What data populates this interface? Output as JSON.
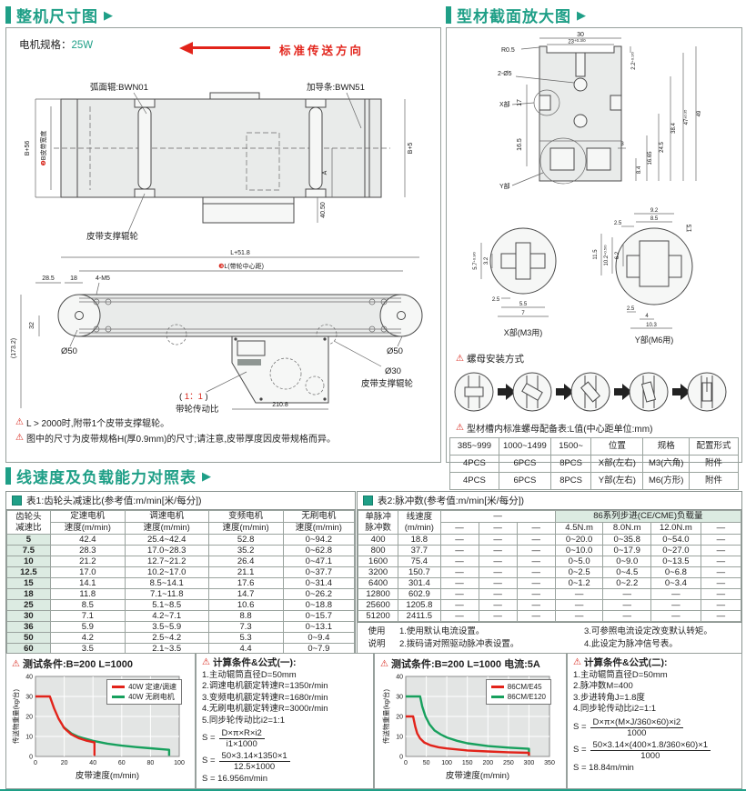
{
  "machine_panel": {
    "title": "整机尺寸图",
    "arrow": "▶",
    "motor_spec_label": "电机规格：",
    "motor_spec_value": "25W",
    "direction_label": "标准传送方向",
    "top_view": {
      "roller_label": "弧面辊:BWN01",
      "guide_label": "加导条:BWN51",
      "dim_left_outer": "B+56",
      "dim_belt_badge": "❷",
      "dim_belt_width": "B皮带宽度",
      "dim_right": "B+5",
      "dim_a": "A",
      "dim_4050": "40.50",
      "support_roller_label": "皮带支撑辊轮"
    },
    "side_view": {
      "dim_total": "L+51.8",
      "dim_center_badge": "❸",
      "dim_center": "L(带轮中心距)",
      "dim_285": "28.5",
      "dim_18": "18",
      "dim_4m5": "4-M5",
      "dim_1732": "(173.2)",
      "dim_32": "32",
      "dim_d50_left": "Ø50",
      "dim_d50_right": "Ø50",
      "dim_d30": "Ø30",
      "support_roller_label": "皮带支撑辊轮",
      "dim_2108": "210.8",
      "ratio_open": "( ",
      "ratio_value": "1：1",
      "ratio_close": " )",
      "ratio_caption": "带轮传动比"
    },
    "notes": [
      "L > 2000时,附带1个皮带支撑辊轮。",
      "图中的尺寸为皮带规格H(厚0.9mm)的尺寸;请注意,皮带厚度因皮带规格而异。"
    ]
  },
  "profile_panel": {
    "title": "型材截面放大图",
    "arrow": "▶",
    "section": {
      "dim_30": "30",
      "dim_23": "23",
      "dim_23_tol": "+0.3/0",
      "r05": "R0.5",
      "holes": "2-Ø5",
      "x_label": "X部",
      "y_label": "Y部",
      "dim_17": "17",
      "dim_165": "16.5",
      "dim_22": "2.2",
      "dim_22_tol": "+0.2/0",
      "dim_3": "3",
      "dim_84": "8.4",
      "dim_1665": "16.65",
      "dim_245": "24.5",
      "dim_384": "38.4",
      "dim_47": "47",
      "dim_47_tol": "±0.35",
      "dim_49": "49"
    },
    "x_detail": {
      "dim_57": "5.7",
      "dim_57_tol": "+0.3/0",
      "dim_32": "3.2",
      "dim_25": "2.5",
      "dim_55": "5.5",
      "dim_7": "7",
      "caption": "X部(M3用)"
    },
    "y_detail": {
      "dim_92": "9.2",
      "dim_85": "8.5",
      "dim_15": "1.5",
      "dim_25a": "2.5",
      "dim_115": "11.5",
      "dim_102": "10.2",
      "dim_102_tol": "+0.5/0",
      "dim_62": "6.2",
      "dim_25b": "2.5",
      "dim_4": "4",
      "dim_103": "10.3",
      "caption": "Y部(M6用)"
    },
    "nut_install_label": "螺母安装方式",
    "nut_table_title": "型材槽内标准螺母配备表:L值(中心距单位:mm)",
    "nut_table": {
      "headers": [
        "385~999",
        "1000~1499",
        "1500~",
        "位置",
        "规格",
        "配置形式"
      ],
      "rows": [
        [
          "4PCS",
          "6PCS",
          "8PCS",
          "X部(左右)",
          "M3(六角)",
          "附件"
        ],
        [
          "4PCS",
          "6PCS",
          "8PCS",
          "Y部(左右)",
          "M6(方形)",
          "附件"
        ]
      ]
    }
  },
  "speed_section": {
    "title": "线速度及负载能力对照表",
    "arrow": "▶",
    "table1": {
      "caption": "表1:齿轮头减速比(参考值:m/min[米/每分])",
      "row_header_line1": "齿轮头",
      "row_header_line2": "减速比",
      "col_headers": [
        "定速电机",
        "调速电机",
        "变频电机",
        "无刷电机"
      ],
      "col_sub": "速度(m/min)",
      "rows": [
        [
          "5",
          "42.4",
          "25.4~42.4",
          "52.8",
          "0~94.2"
        ],
        [
          "7.5",
          "28.3",
          "17.0~28.3",
          "35.2",
          "0~62.8"
        ],
        [
          "10",
          "21.2",
          "12.7~21.2",
          "26.4",
          "0~47.1"
        ],
        [
          "12.5",
          "17.0",
          "10.2~17.0",
          "21.1",
          "0~37.7"
        ],
        [
          "15",
          "14.1",
          "8.5~14.1",
          "17.6",
          "0~31.4"
        ],
        [
          "18",
          "11.8",
          "7.1~11.8",
          "14.7",
          "0~26.2"
        ],
        [
          "25",
          "8.5",
          "5.1~8.5",
          "10.6",
          "0~18.8"
        ],
        [
          "30",
          "7.1",
          "4.2~7.1",
          "8.8",
          "0~15.7"
        ],
        [
          "36",
          "5.9",
          "3.5~5.9",
          "7.3",
          "0~13.1"
        ],
        [
          "50",
          "4.2",
          "2.5~4.2",
          "5.3",
          "0~9.4"
        ],
        [
          "60",
          "3.5",
          "2.1~3.5",
          "4.4",
          "0~7.9"
        ]
      ]
    },
    "table2": {
      "caption": "表2:脉冲数(参考值:m/min[米/每分])",
      "row_header_line1": "单脉冲",
      "row_header_line2": "脉冲数",
      "speed_header_line1": "线速度",
      "speed_header_line2": "(m/min)",
      "dash_group": "—",
      "group_header": "86系列步进(CE/CME)负载量",
      "sub_headers": [
        "—",
        "—",
        "—",
        "4.5N.m",
        "8.0N.m",
        "12.0N.m",
        "—"
      ],
      "rows": [
        [
          "400",
          "18.8",
          "—",
          "—",
          "—",
          "0~20.0",
          "0~35.8",
          "0~54.0",
          "—"
        ],
        [
          "800",
          "37.7",
          "—",
          "—",
          "—",
          "0~10.0",
          "0~17.9",
          "0~27.0",
          "—"
        ],
        [
          "1600",
          "75.4",
          "—",
          "—",
          "—",
          "0~5.0",
          "0~9.0",
          "0~13.5",
          "—"
        ],
        [
          "3200",
          "150.7",
          "—",
          "—",
          "—",
          "0~2.5",
          "0~4.5",
          "0~6.8",
          "—"
        ],
        [
          "6400",
          "301.4",
          "—",
          "—",
          "—",
          "0~1.2",
          "0~2.2",
          "0~3.4",
          "—"
        ],
        [
          "12800",
          "602.9",
          "—",
          "—",
          "—",
          "—",
          "—",
          "—",
          "—"
        ],
        [
          "25600",
          "1205.8",
          "—",
          "—",
          "—",
          "—",
          "—",
          "—",
          "—"
        ],
        [
          "51200",
          "2411.5",
          "—",
          "—",
          "—",
          "—",
          "—",
          "—",
          "—"
        ]
      ],
      "usage_label_1": "使用",
      "usage_label_2": "说明",
      "usage_notes_left": [
        "1.使用默认电流设置。",
        "2.拨码请对照驱动脉冲表设置。"
      ],
      "usage_notes_right": [
        "3.可参照电流设定改变默认转矩。",
        "4.此设定为脉冲信号表。"
      ]
    }
  },
  "calc1": {
    "title": "计算条件&公式(一):",
    "lines": [
      "1.主动辊筒直径D=50mm",
      "2.调速电机额定转速R=1350r/min",
      "3.变频电机额定转速R=1680r/min",
      "4.无刷电机额定转速R=3000r/min",
      "5.同步轮传动比i2=1:1"
    ],
    "s_label": "S =",
    "f1_num": "D×π×R×i2",
    "f1_den": "i1×1000",
    "f2_num": "50×3.14×1350×1",
    "f2_den": "12.5×1000",
    "result": "S = 16.956m/min"
  },
  "calc2": {
    "title": "计算条件&公式(二):",
    "lines": [
      "1.主动辊筒直径D=50mm",
      "2.脉冲数M=400",
      "3.步进转角J=1.8度",
      "4.同步轮传动比i2=1:1"
    ],
    "s_label": "S =",
    "f1_num": "D×π×(M×J/360×60)×i2",
    "f1_den": "1000",
    "f2_num": "50×3.14×(400×1.8/360×60)×1",
    "f2_den": "1000",
    "result": "S = 18.84m/min"
  },
  "chart_data": [
    {
      "type": "line",
      "title": "测试条件:B=200  L=1000",
      "xlabel": "皮带速度(m/min)",
      "ylabel": "传送物重量(kg/台)",
      "xlim": [
        0,
        100
      ],
      "ylim": [
        0,
        40
      ],
      "grid": true,
      "legend_position": "top-right",
      "x_ticks": [
        "0",
        "20",
        "40",
        "60",
        "80",
        "100"
      ],
      "y_ticks": [
        "0",
        "10",
        "20",
        "30",
        "40"
      ],
      "series": [
        {
          "name": "40W 定速/调速",
          "color": "#e2231a",
          "points": [
            [
              0,
              30
            ],
            [
              10,
              30
            ],
            [
              13,
              24
            ],
            [
              16,
              19
            ],
            [
              20,
              14.2
            ],
            [
              25,
              11
            ],
            [
              30,
              9.2
            ],
            [
              35,
              8
            ],
            [
              40,
              7.2
            ],
            [
              41,
              7
            ],
            [
              41,
              0.3
            ]
          ]
        },
        {
          "name": "40W 无刷电机",
          "color": "#17a05d",
          "points": [
            [
              19,
              15
            ],
            [
              25,
              11.5
            ],
            [
              30,
              9.8
            ],
            [
              40,
              7.8
            ],
            [
              50,
              6.4
            ],
            [
              60,
              5.4
            ],
            [
              70,
              4.7
            ],
            [
              80,
              4.1
            ],
            [
              88,
              3.6
            ],
            [
              93,
              3.3
            ],
            [
              93,
              0.3
            ]
          ]
        }
      ]
    },
    {
      "type": "line",
      "title": "测试条件:B=200  L=1000  电流:5A",
      "xlabel": "皮带速度(m/min)",
      "ylabel": "传送物重量(kg/台)",
      "xlim": [
        0,
        350
      ],
      "ylim": [
        0,
        40
      ],
      "grid": true,
      "legend_position": "top-right",
      "x_ticks": [
        "0",
        "50",
        "100",
        "150",
        "200",
        "250",
        "300",
        "350"
      ],
      "y_ticks": [
        "0",
        "10",
        "20",
        "30",
        "40"
      ],
      "series": [
        {
          "name": "86CM/E45",
          "color": "#e2231a",
          "points": [
            [
              0,
              20
            ],
            [
              18,
              20
            ],
            [
              23,
              15
            ],
            [
              28,
              11.5
            ],
            [
              35,
              9
            ],
            [
              45,
              7
            ],
            [
              60,
              5.6
            ],
            [
              80,
              4.6
            ],
            [
              100,
              4
            ],
            [
              150,
              3
            ],
            [
              200,
              2.5
            ],
            [
              250,
              2.1
            ],
            [
              300,
              1.8
            ],
            [
              300,
              0.3
            ]
          ]
        },
        {
          "name": "86CM/E120",
          "color": "#17a05d",
          "points": [
            [
              0,
              30
            ],
            [
              35,
              30
            ],
            [
              40,
              25
            ],
            [
              48,
              20
            ],
            [
              58,
              16
            ],
            [
              70,
              13
            ],
            [
              85,
              11
            ],
            [
              100,
              9.5
            ],
            [
              125,
              7.8
            ],
            [
              150,
              6.6
            ],
            [
              200,
              5.2
            ],
            [
              250,
              4.4
            ],
            [
              300,
              3.8
            ],
            [
              300,
              0.3
            ]
          ]
        }
      ]
    }
  ],
  "theme": {
    "accent_teal": "#1f9f87",
    "accent_red": "#e2231a",
    "table_green": "#dcebe2"
  }
}
